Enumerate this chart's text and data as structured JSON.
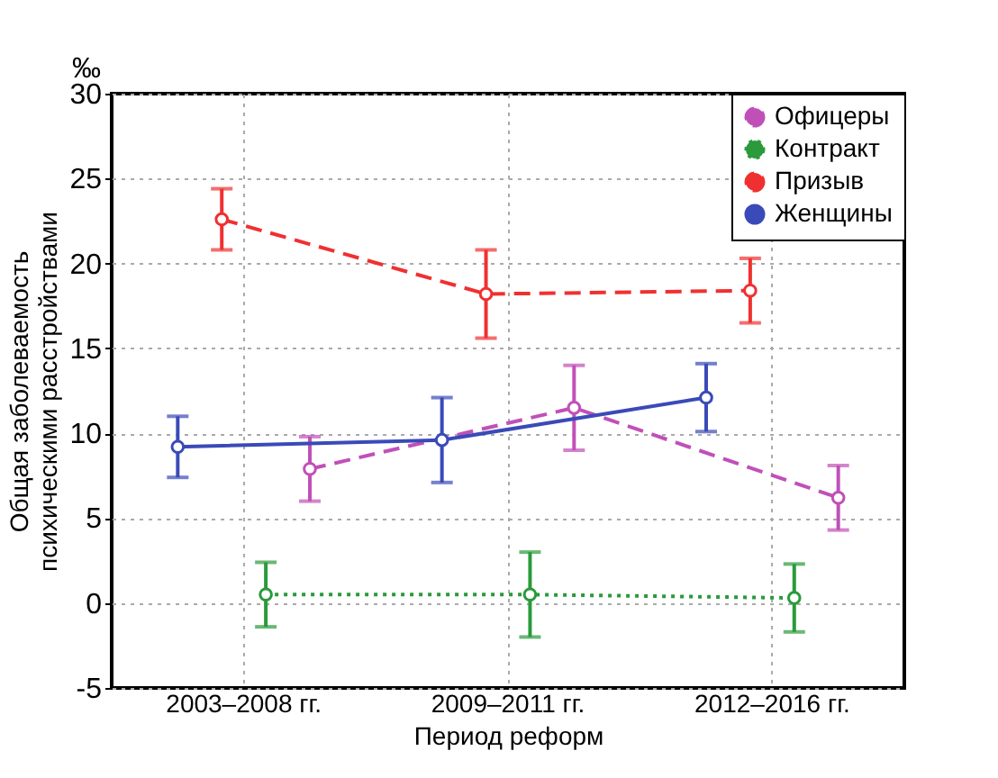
{
  "chart_data": {
    "type": "line",
    "xlabel": "Период реформ",
    "ylabel": "Общая заболеваемость психическими расстройствами",
    "annotations": [
      "‰"
    ],
    "categories": [
      "2003–2008 гг.",
      "2009–2011 гг.",
      "2012–2016 гг."
    ],
    "ylim": [
      -5,
      30
    ],
    "yticks": [
      -5,
      0,
      5,
      10,
      15,
      20,
      25,
      30
    ],
    "grid": true,
    "legend": "top right",
    "marker": "circle",
    "series": [
      {
        "name": "Офицеры",
        "color": "#c050b8",
        "line_style": "dashed",
        "values": [
          7.9,
          11.5,
          6.2
        ],
        "errors": [
          1.9,
          2.5,
          1.9
        ]
      },
      {
        "name": "Контракт",
        "color": "#2a9a3a",
        "line_style": "dotted",
        "values": [
          0.5,
          0.5,
          0.3
        ],
        "errors": [
          1.9,
          2.5,
          2.0
        ]
      },
      {
        "name": "Призыв",
        "color": "#f03030",
        "line_style": "dashed",
        "values": [
          22.6,
          18.2,
          18.4
        ],
        "errors": [
          1.8,
          2.6,
          1.9
        ]
      },
      {
        "name": "Женщины",
        "color": "#3a4ab8",
        "line_style": "solid",
        "values": [
          9.2,
          9.6,
          12.1
        ],
        "errors": [
          1.8,
          2.5,
          2.0
        ]
      }
    ]
  }
}
